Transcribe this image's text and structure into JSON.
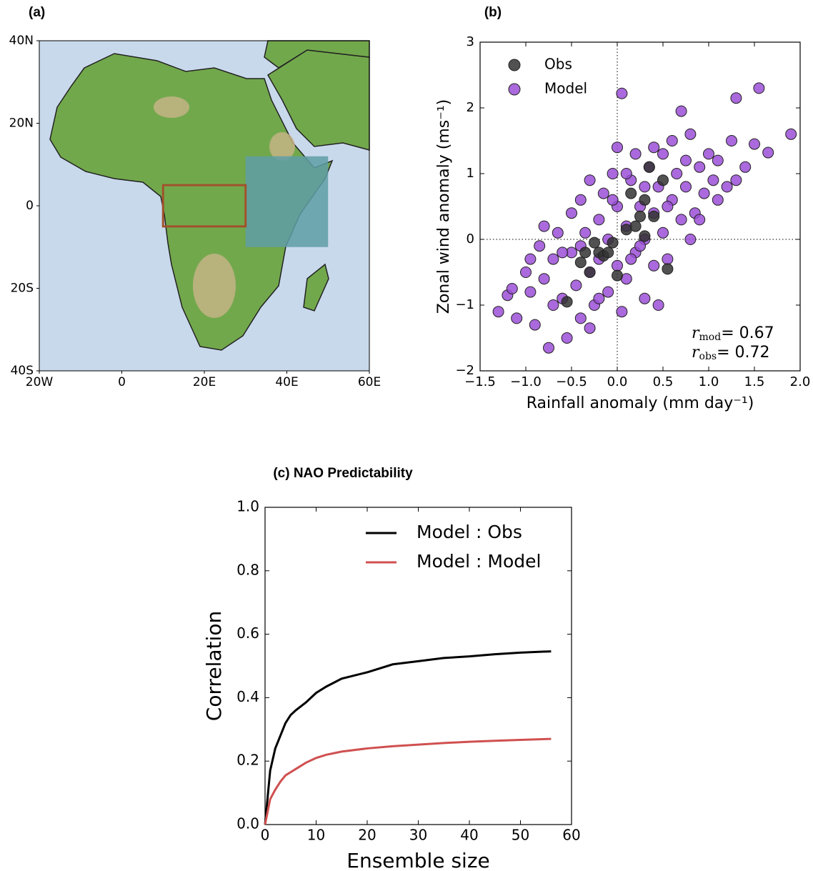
{
  "chart_data": [
    {
      "type": "map",
      "title": "(a)",
      "xlim": [
        -20,
        60
      ],
      "ylim": [
        -40,
        40
      ],
      "xticks": [
        {
          "value": -20,
          "label": "20W"
        },
        0,
        {
          "value": 20,
          "label": "20E"
        },
        {
          "value": 40,
          "label": "40E"
        },
        {
          "value": 60,
          "label": "60E"
        }
      ],
      "yticks": [
        {
          "value": 40,
          "label": "40N"
        },
        {
          "value": 20,
          "label": "20N"
        },
        0,
        {
          "value": -20,
          "label": "20S"
        },
        {
          "value": -40,
          "label": "40S"
        }
      ],
      "boxes": [
        {
          "lon": [
            30,
            50
          ],
          "lat": [
            -10,
            12
          ],
          "color": "#5f9ea6",
          "filled": true
        },
        {
          "lon": [
            10,
            30
          ],
          "lat": [
            -5,
            5
          ],
          "color": "#a0522d",
          "filled": false
        }
      ]
    },
    {
      "type": "scatter",
      "title": "(b)",
      "x_label": "Rainfall anomaly (mm day⁻¹)",
      "y_label": "Zonal wind anomaly (ms⁻¹)",
      "xlim": [
        -1.5,
        2.0
      ],
      "ylim": [
        -2,
        3
      ],
      "xticks": [
        {
          "value": -1.5,
          "label": "−1.5"
        },
        {
          "value": -1.0,
          "label": "−1.0"
        },
        {
          "value": -0.5,
          "label": "−0.5"
        },
        {
          "value": 0,
          "label": "0.0"
        },
        {
          "value": 0.5,
          "label": "0.5"
        },
        {
          "value": 1.0,
          "label": "1.0"
        },
        {
          "value": 1.5,
          "label": "1.5"
        },
        {
          "value": 2.0,
          "label": "2.0"
        }
      ],
      "yticks": [
        {
          "value": -2,
          "label": "−2"
        },
        {
          "value": -1,
          "label": "−1"
        },
        0,
        1,
        2,
        3
      ],
      "zero_lines": true,
      "legend": "upper left",
      "annotations": [
        {
          "var": "r",
          "sub": "mod",
          "text": "= 0.67"
        },
        {
          "var": "r",
          "sub": "obs",
          "text": "= 0.72"
        }
      ],
      "series": [
        {
          "name": "Obs",
          "color": "#333333",
          "x": [
            -0.55,
            -0.4,
            -0.3,
            -0.25,
            -0.2,
            -0.15,
            -0.1,
            0.0,
            0.1,
            0.15,
            0.2,
            0.25,
            0.3,
            0.35,
            0.4,
            0.5,
            0.55,
            -0.05,
            0.3,
            -0.35
          ],
          "values": [
            -0.95,
            -0.35,
            -0.5,
            -0.05,
            -0.2,
            -0.25,
            -0.2,
            -0.55,
            0.15,
            0.7,
            0.2,
            0.35,
            0.6,
            1.1,
            0.35,
            0.9,
            -0.45,
            -0.05,
            0.05,
            -0.2
          ]
        },
        {
          "name": "Model",
          "color": "#9b4fd6",
          "x": [
            -1.3,
            -1.2,
            -1.1,
            -1.0,
            -0.95,
            -0.9,
            -0.85,
            -0.8,
            -0.75,
            -0.7,
            -0.65,
            -0.6,
            -0.55,
            -0.5,
            -0.5,
            -0.45,
            -0.4,
            -0.4,
            -0.35,
            -0.3,
            -0.3,
            -0.25,
            -0.2,
            -0.2,
            -0.15,
            -0.1,
            -0.1,
            -0.05,
            0.0,
            0.0,
            0.0,
            0.05,
            0.05,
            0.1,
            0.1,
            0.15,
            0.2,
            0.2,
            0.25,
            0.3,
            0.3,
            0.35,
            0.4,
            0.4,
            0.45,
            0.5,
            0.5,
            0.55,
            0.6,
            0.65,
            0.7,
            0.7,
            0.75,
            0.8,
            0.85,
            0.9,
            0.95,
            1.0,
            1.05,
            1.1,
            1.2,
            1.25,
            1.3,
            1.3,
            1.4,
            1.5,
            1.55,
            1.65,
            1.9,
            -0.6,
            -0.2,
            0.3,
            0.6,
            0.9,
            -0.8,
            -0.4,
            0.1,
            0.4,
            -1.15,
            -0.95,
            0.8,
            0.25,
            -0.3,
            1.1,
            0.55,
            -0.05,
            -0.7,
            0.15,
            0.45,
            0.75
          ],
          "values": [
            -1.1,
            -0.85,
            -1.2,
            -0.5,
            -0.8,
            -1.3,
            -0.1,
            -0.6,
            -1.65,
            -0.3,
            0.1,
            -0.9,
            -1.5,
            0.4,
            -0.2,
            -0.7,
            0.6,
            -1.2,
            0.1,
            -0.5,
            0.9,
            -1.0,
            0.3,
            -0.3,
            0.7,
            -0.8,
            0.0,
            1.0,
            -0.4,
            0.5,
            1.4,
            -1.1,
            2.22,
            0.2,
            -0.6,
            0.9,
            -0.2,
            1.3,
            0.5,
            -0.9,
            0.0,
            1.1,
            0.4,
            -0.4,
            0.8,
            1.3,
            0.1,
            -0.3,
            0.6,
            1.0,
            0.3,
            1.95,
            0.8,
            1.6,
            0.4,
            1.1,
            0.7,
            1.3,
            0.9,
            0.6,
            0.8,
            1.5,
            0.9,
            2.15,
            1.1,
            1.45,
            2.3,
            1.32,
            1.6,
            -0.2,
            -0.9,
            0.8,
            1.5,
            0.3,
            0.2,
            -0.1,
            1.0,
            1.4,
            -0.75,
            -0.3,
            0.0,
            -0.1,
            -1.35,
            1.2,
            0.5,
            0.6,
            -1.0,
            -0.3,
            -1.0,
            1.2
          ]
        }
      ]
    },
    {
      "type": "line",
      "title": "(c) NAO Predictability",
      "x_label": "Ensemble size",
      "y_label": "Correlation",
      "xlim": [
        0,
        60
      ],
      "ylim": [
        0,
        1.0
      ],
      "xticks": [
        0,
        10,
        20,
        30,
        40,
        50,
        60
      ],
      "yticks": [
        {
          "value": 0,
          "label": "0.0"
        },
        {
          "value": 0.2,
          "label": "0.2"
        },
        {
          "value": 0.4,
          "label": "0.4"
        },
        {
          "value": 0.6,
          "label": "0.6"
        },
        {
          "value": 0.8,
          "label": "0.8"
        },
        {
          "value": 1.0,
          "label": "1.0"
        }
      ],
      "legend": "upper right",
      "x": [
        0,
        1,
        2,
        3,
        4,
        5,
        6,
        8,
        10,
        12,
        15,
        20,
        25,
        30,
        35,
        40,
        45,
        50,
        56
      ],
      "series": [
        {
          "name": "Model : Obs",
          "color": "#000000",
          "values": [
            0,
            0.17,
            0.24,
            0.28,
            0.32,
            0.345,
            0.36,
            0.385,
            0.415,
            0.435,
            0.46,
            0.48,
            0.505,
            0.515,
            0.525,
            0.53,
            0.537,
            0.542,
            0.546
          ]
        },
        {
          "name": "Model : Model",
          "color": "#d05050",
          "values": [
            0,
            0.08,
            0.11,
            0.135,
            0.155,
            0.165,
            0.175,
            0.195,
            0.21,
            0.22,
            0.23,
            0.24,
            0.247,
            0.252,
            0.257,
            0.261,
            0.264,
            0.267,
            0.27
          ]
        }
      ]
    }
  ]
}
